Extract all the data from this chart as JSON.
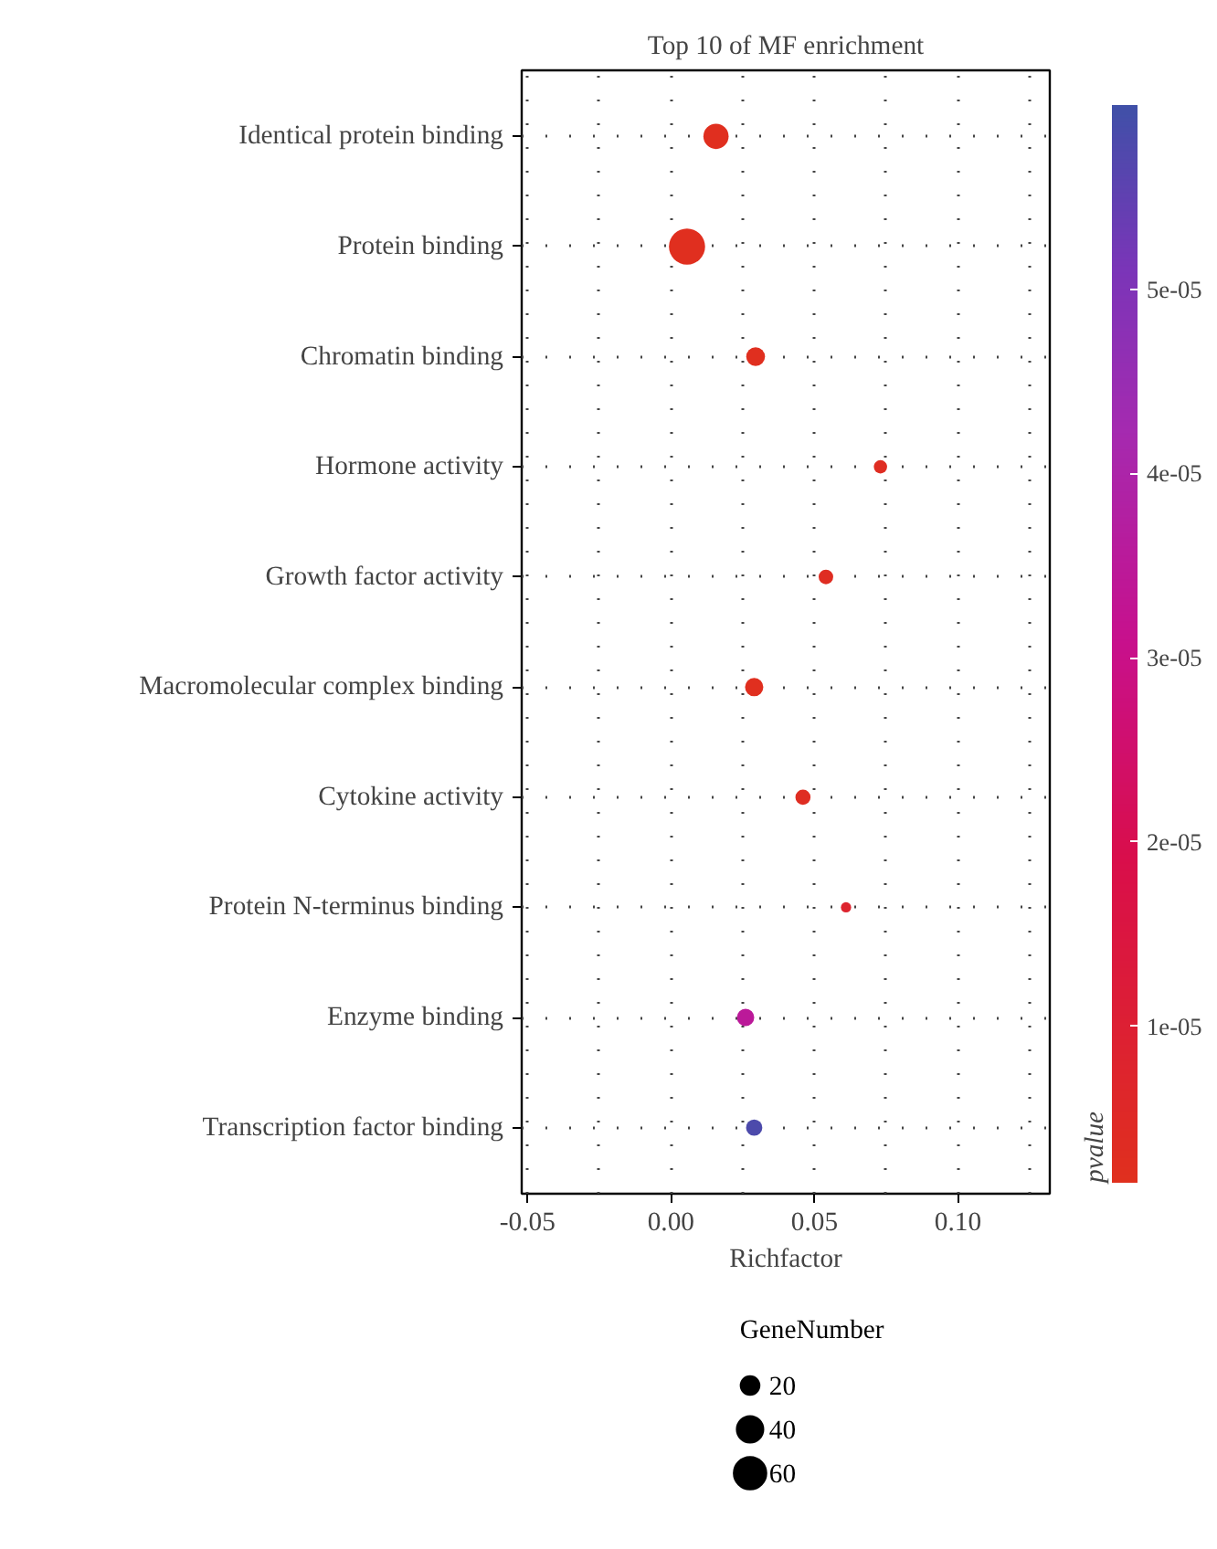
{
  "chart_data": {
    "type": "bubble",
    "title": "Top 10 of MF enrichment",
    "xlabel": "Richfactor",
    "clabel": "pvalue",
    "legend_title": "GeneNumber",
    "categories": [
      "Identical protein binding",
      "Protein binding",
      "Chromatin binding",
      "Hormone activity",
      "Growth factor activity",
      "Macromolecular complex binding",
      "Cytokine activity",
      "Protein N-terminus binding",
      "Enzyme binding",
      "Transcription factor binding"
    ],
    "values": [
      0.0157,
      0.0056,
      0.0295,
      0.073,
      0.054,
      0.029,
      0.046,
      0.061,
      0.026,
      0.029
    ],
    "sizes": [
      36,
      74,
      20,
      10,
      12,
      19,
      13,
      6,
      17,
      15
    ],
    "cvalues": [
      2e-06,
      2e-06,
      2e-06,
      3e-06,
      3e-06,
      2e-06,
      3e-06,
      8e-06,
      3.5e-05,
      5.8e-05
    ],
    "size_legend": [
      20,
      40,
      60
    ],
    "clim": [
      1.5e-06,
      6e-05
    ],
    "cticks": [
      {
        "value": 1e-05,
        "label": "1e-05"
      },
      {
        "value": 2e-05,
        "label": "2e-05"
      },
      {
        "value": 3e-05,
        "label": "3e-05"
      },
      {
        "value": 4e-05,
        "label": "4e-05"
      },
      {
        "value": 5e-05,
        "label": "5e-05"
      }
    ],
    "xlim": [
      -0.052,
      0.132
    ],
    "xticks": [
      {
        "value": -0.05,
        "label": "-0.05"
      },
      {
        "value": 0,
        "label": "0.00"
      },
      {
        "value": 0.05,
        "label": "0.05"
      },
      {
        "value": 0.1,
        "label": "0.10"
      }
    ],
    "orientation": "horizontal",
    "grid": true
  }
}
